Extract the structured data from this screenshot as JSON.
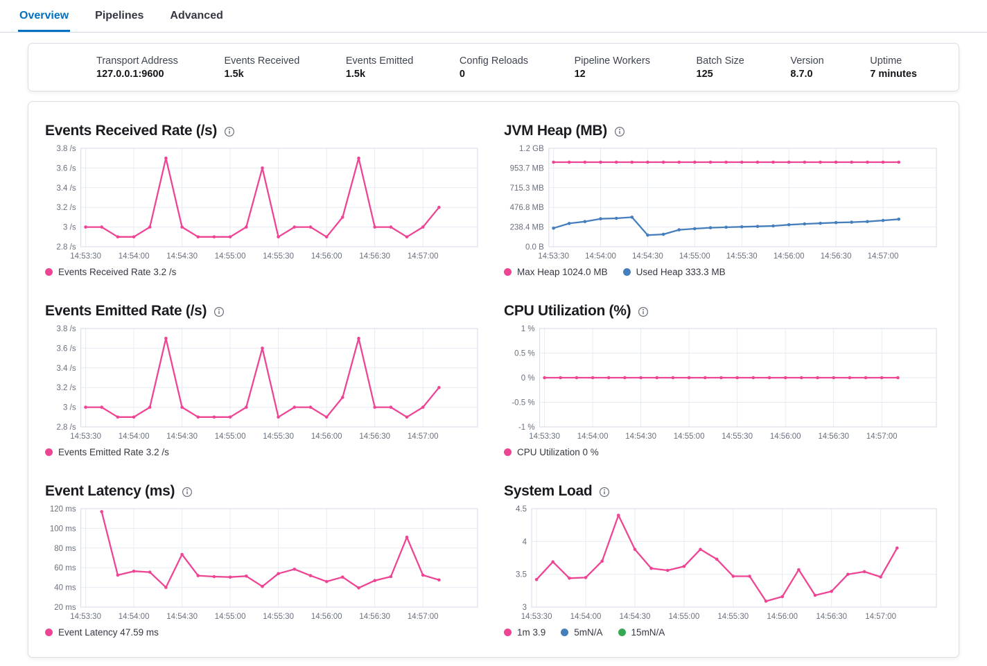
{
  "tabs": [
    {
      "label": "Overview",
      "active": true
    },
    {
      "label": "Pipelines",
      "active": false
    },
    {
      "label": "Advanced",
      "active": false
    }
  ],
  "summary": {
    "items": [
      {
        "label": "Transport Address",
        "value": "127.0.0.1:9600"
      },
      {
        "label": "Events Received",
        "value": "1.5k"
      },
      {
        "label": "Events Emitted",
        "value": "1.5k"
      },
      {
        "label": "Config Reloads",
        "value": "0"
      },
      {
        "label": "Pipeline Workers",
        "value": "12"
      },
      {
        "label": "Batch Size",
        "value": "125"
      },
      {
        "label": "Version",
        "value": "8.7.0"
      },
      {
        "label": "Uptime",
        "value": "7 minutes"
      }
    ]
  },
  "colors": {
    "accent_pink": "#ee4494",
    "accent_blue": "#447ebc",
    "accent_green": "#36a854",
    "tab_active": "#0071c2"
  },
  "chart_data": [
    {
      "type": "line",
      "title": "Events Received Rate (/s)",
      "x": [
        "14:53:30",
        "14:53:40",
        "14:53:50",
        "14:54:00",
        "14:54:10",
        "14:54:20",
        "14:54:30",
        "14:54:40",
        "14:54:50",
        "14:55:00",
        "14:55:10",
        "14:55:20",
        "14:55:30",
        "14:55:40",
        "14:55:50",
        "14:56:00",
        "14:56:10",
        "14:56:20",
        "14:56:30",
        "14:56:40",
        "14:56:50",
        "14:57:00",
        "14:57:10"
      ],
      "xticks": [
        "14:53:30",
        "14:54:00",
        "14:54:30",
        "14:55:00",
        "14:55:30",
        "14:56:00",
        "14:56:30",
        "14:57:00"
      ],
      "ylim": [
        2.8,
        3.8
      ],
      "yticks": [
        {
          "v": 2.8,
          "label": "2.8 /s"
        },
        {
          "v": 3,
          "label": "3 /s"
        },
        {
          "v": 3.2,
          "label": "3.2 /s"
        },
        {
          "v": 3.4,
          "label": "3.4 /s"
        },
        {
          "v": 3.6,
          "label": "3.6 /s"
        },
        {
          "v": 3.8,
          "label": "3.8 /s"
        }
      ],
      "series": [
        {
          "name": "Events Received Rate",
          "color": "#ee4494",
          "values": [
            3.0,
            3.0,
            2.9,
            2.9,
            3.0,
            3.7,
            3.0,
            2.9,
            2.9,
            2.9,
            3.0,
            3.6,
            2.9,
            3.0,
            3.0,
            2.9,
            3.1,
            3.7,
            3.0,
            3.0,
            2.9,
            3.0,
            3.2
          ]
        }
      ],
      "legend": [
        {
          "color": "#ee4494",
          "label": "Events Received Rate 3.2 /s"
        }
      ]
    },
    {
      "type": "line",
      "title": "JVM Heap (MB)",
      "x": [
        "14:53:30",
        "14:53:40",
        "14:53:50",
        "14:54:00",
        "14:54:10",
        "14:54:20",
        "14:54:30",
        "14:54:40",
        "14:54:50",
        "14:55:00",
        "14:55:10",
        "14:55:20",
        "14:55:30",
        "14:55:40",
        "14:55:50",
        "14:56:00",
        "14:56:10",
        "14:56:20",
        "14:56:30",
        "14:56:40",
        "14:56:50",
        "14:57:00",
        "14:57:10"
      ],
      "xticks": [
        "14:53:30",
        "14:54:00",
        "14:54:30",
        "14:55:00",
        "14:55:30",
        "14:56:00",
        "14:56:30",
        "14:57:00"
      ],
      "ylim": [
        0,
        1192.1
      ],
      "yticks": [
        {
          "v": 0,
          "label": "0.0 B"
        },
        {
          "v": 238.4,
          "label": "238.4 MB"
        },
        {
          "v": 476.8,
          "label": "476.8 MB"
        },
        {
          "v": 715.3,
          "label": "715.3 MB"
        },
        {
          "v": 953.7,
          "label": "953.7 MB"
        },
        {
          "v": 1192.1,
          "label": "1.2 GB"
        }
      ],
      "series": [
        {
          "name": "Max Heap",
          "color": "#ee4494",
          "values": [
            1024,
            1024,
            1024,
            1024,
            1024,
            1024,
            1024,
            1024,
            1024,
            1024,
            1024,
            1024,
            1024,
            1024,
            1024,
            1024,
            1024,
            1024,
            1024,
            1024,
            1024,
            1024,
            1024
          ]
        },
        {
          "name": "Used Heap",
          "color": "#447ebc",
          "values": [
            225,
            282,
            305,
            338,
            344,
            358,
            140,
            150,
            205,
            218,
            230,
            236,
            241,
            246,
            252,
            266,
            276,
            284,
            292,
            297,
            305,
            318,
            333.3
          ]
        }
      ],
      "legend": [
        {
          "color": "#ee4494",
          "label": "Max Heap 1024.0 MB"
        },
        {
          "color": "#447ebc",
          "label": "Used Heap 333.3 MB"
        }
      ]
    },
    {
      "type": "line",
      "title": "Events Emitted Rate (/s)",
      "x": [
        "14:53:30",
        "14:53:40",
        "14:53:50",
        "14:54:00",
        "14:54:10",
        "14:54:20",
        "14:54:30",
        "14:54:40",
        "14:54:50",
        "14:55:00",
        "14:55:10",
        "14:55:20",
        "14:55:30",
        "14:55:40",
        "14:55:50",
        "14:56:00",
        "14:56:10",
        "14:56:20",
        "14:56:30",
        "14:56:40",
        "14:56:50",
        "14:57:00",
        "14:57:10"
      ],
      "xticks": [
        "14:53:30",
        "14:54:00",
        "14:54:30",
        "14:55:00",
        "14:55:30",
        "14:56:00",
        "14:56:30",
        "14:57:00"
      ],
      "ylim": [
        2.8,
        3.8
      ],
      "yticks": [
        {
          "v": 2.8,
          "label": "2.8 /s"
        },
        {
          "v": 3,
          "label": "3 /s"
        },
        {
          "v": 3.2,
          "label": "3.2 /s"
        },
        {
          "v": 3.4,
          "label": "3.4 /s"
        },
        {
          "v": 3.6,
          "label": "3.6 /s"
        },
        {
          "v": 3.8,
          "label": "3.8 /s"
        }
      ],
      "series": [
        {
          "name": "Events Emitted Rate",
          "color": "#ee4494",
          "values": [
            3.0,
            3.0,
            2.9,
            2.9,
            3.0,
            3.7,
            3.0,
            2.9,
            2.9,
            2.9,
            3.0,
            3.6,
            2.9,
            3.0,
            3.0,
            2.9,
            3.1,
            3.7,
            3.0,
            3.0,
            2.9,
            3.0,
            3.2
          ]
        }
      ],
      "legend": [
        {
          "color": "#ee4494",
          "label": "Events Emitted Rate 3.2 /s"
        }
      ]
    },
    {
      "type": "line",
      "title": "CPU Utilization (%)",
      "x": [
        "14:53:30",
        "14:53:40",
        "14:53:50",
        "14:54:00",
        "14:54:10",
        "14:54:20",
        "14:54:30",
        "14:54:40",
        "14:54:50",
        "14:55:00",
        "14:55:10",
        "14:55:20",
        "14:55:30",
        "14:55:40",
        "14:55:50",
        "14:56:00",
        "14:56:10",
        "14:56:20",
        "14:56:30",
        "14:56:40",
        "14:56:50",
        "14:57:00",
        "14:57:10"
      ],
      "xticks": [
        "14:53:30",
        "14:54:00",
        "14:54:30",
        "14:55:00",
        "14:55:30",
        "14:56:00",
        "14:56:30",
        "14:57:00"
      ],
      "ylim": [
        -1,
        1
      ],
      "yticks": [
        {
          "v": -1,
          "label": "-1 %"
        },
        {
          "v": -0.5,
          "label": "-0.5 %"
        },
        {
          "v": 0,
          "label": "0 %"
        },
        {
          "v": 0.5,
          "label": "0.5 %"
        },
        {
          "v": 1,
          "label": "1 %"
        }
      ],
      "series": [
        {
          "name": "CPU Utilization",
          "color": "#ee4494",
          "values": [
            0,
            0,
            0,
            0,
            0,
            0,
            0,
            0,
            0,
            0,
            0,
            0,
            0,
            0,
            0,
            0,
            0,
            0,
            0,
            0,
            0,
            0,
            0
          ]
        }
      ],
      "legend": [
        {
          "color": "#ee4494",
          "label": "CPU Utilization 0 %"
        }
      ]
    },
    {
      "type": "line",
      "title": "Event Latency (ms)",
      "x": [
        "14:53:40",
        "14:53:50",
        "14:54:00",
        "14:54:10",
        "14:54:20",
        "14:54:30",
        "14:54:40",
        "14:54:50",
        "14:55:00",
        "14:55:10",
        "14:55:20",
        "14:55:30",
        "14:55:40",
        "14:55:50",
        "14:56:00",
        "14:56:10",
        "14:56:20",
        "14:56:30",
        "14:56:40",
        "14:56:50",
        "14:57:00",
        "14:57:10"
      ],
      "xticks": [
        "14:53:30",
        "14:54:00",
        "14:54:30",
        "14:55:00",
        "14:55:30",
        "14:56:00",
        "14:56:30",
        "14:57:00"
      ],
      "ylim": [
        20,
        120
      ],
      "yticks": [
        {
          "v": 20,
          "label": "20 ms"
        },
        {
          "v": 40,
          "label": "40 ms"
        },
        {
          "v": 60,
          "label": "60 ms"
        },
        {
          "v": 80,
          "label": "80 ms"
        },
        {
          "v": 100,
          "label": "100 ms"
        },
        {
          "v": 120,
          "label": "120 ms"
        }
      ],
      "series": [
        {
          "name": "Event Latency",
          "color": "#ee4494",
          "values": [
            117,
            52.5,
            56.5,
            55.5,
            40,
            73.5,
            52,
            51,
            50.5,
            51.5,
            41,
            54,
            58.5,
            52,
            46,
            50.5,
            39.5,
            47,
            51,
            91,
            52.5,
            47.59
          ]
        }
      ],
      "legend": [
        {
          "color": "#ee4494",
          "label": "Event Latency 47.59 ms"
        }
      ]
    },
    {
      "type": "line",
      "title": "System Load",
      "x": [
        "14:53:30",
        "14:53:40",
        "14:53:50",
        "14:54:00",
        "14:54:10",
        "14:54:20",
        "14:54:30",
        "14:54:40",
        "14:54:50",
        "14:55:00",
        "14:55:10",
        "14:55:20",
        "14:55:30",
        "14:55:40",
        "14:55:50",
        "14:56:00",
        "14:56:10",
        "14:56:20",
        "14:56:30",
        "14:56:40",
        "14:56:50",
        "14:57:00",
        "14:57:10"
      ],
      "xticks": [
        "14:53:30",
        "14:54:00",
        "14:54:30",
        "14:55:00",
        "14:55:30",
        "14:56:00",
        "14:56:30",
        "14:57:00"
      ],
      "ylim": [
        3,
        4.5
      ],
      "yticks": [
        {
          "v": 3,
          "label": "3"
        },
        {
          "v": 3.5,
          "label": "3.5"
        },
        {
          "v": 4,
          "label": "4"
        },
        {
          "v": 4.5,
          "label": "4.5"
        }
      ],
      "series": [
        {
          "name": "1m",
          "color": "#ee4494",
          "values": [
            3.42,
            3.69,
            3.44,
            3.45,
            3.7,
            4.4,
            3.88,
            3.59,
            3.56,
            3.62,
            3.88,
            3.73,
            3.47,
            3.47,
            3.09,
            3.16,
            3.57,
            3.18,
            3.24,
            3.5,
            3.54,
            3.46,
            3.9
          ]
        }
      ],
      "legend": [
        {
          "color": "#ee4494",
          "label": "1m 3.9"
        },
        {
          "color": "#447ebc",
          "label": "5mN/A"
        },
        {
          "color": "#36a854",
          "label": "15mN/A"
        }
      ]
    }
  ]
}
